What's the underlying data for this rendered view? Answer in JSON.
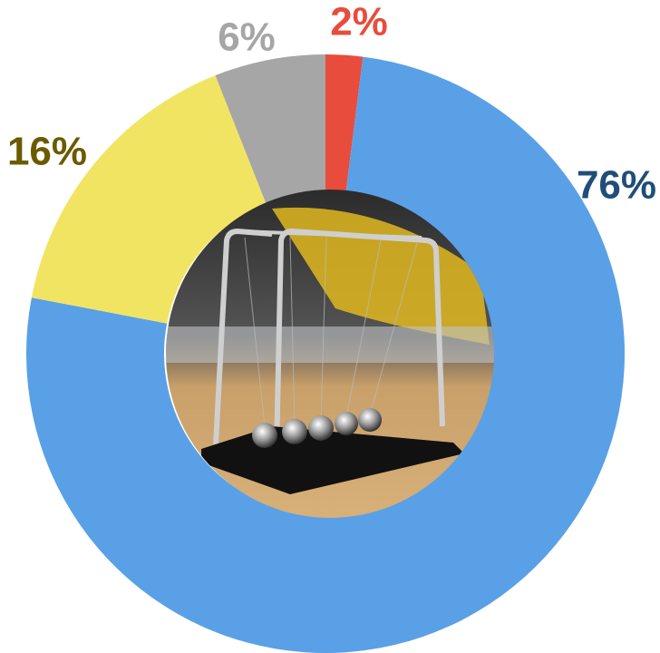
{
  "chart_data": {
    "type": "donut",
    "values": [
      2,
      76,
      16,
      6
    ],
    "value_labels": [
      "2%",
      "76%",
      "16%",
      "6%"
    ],
    "colors": [
      "#e84c3d",
      "#5aa0e6",
      "#f2e463",
      "#a6a6a6"
    ],
    "label_colors": [
      "#e84c3d",
      "#1f4e79",
      "#6b5a00",
      "#a6a6a6"
    ]
  }
}
